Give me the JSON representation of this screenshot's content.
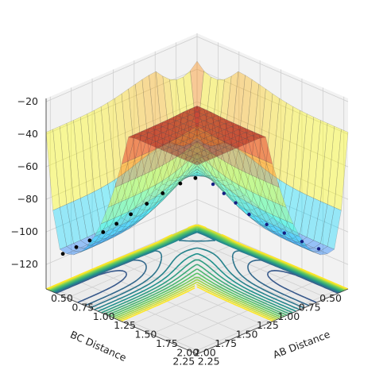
{
  "chart_data": {
    "type": "surface3d",
    "title": "",
    "xlabel": "AB Distance",
    "ylabel": "BC Distance",
    "zlabel": "",
    "xlim": [
      0.5,
      2.3
    ],
    "ylim": [
      0.5,
      2.3
    ],
    "zlim": [
      -135,
      -18
    ],
    "x_ticks": [
      "0.50",
      "0.75",
      "1.00",
      "1.25",
      "1.50",
      "1.75",
      "2.00",
      "2.25"
    ],
    "y_ticks": [
      "0.50",
      "0.75",
      "1.00",
      "1.25",
      "1.50",
      "1.75",
      "2.00",
      "2.25"
    ],
    "z_ticks": [
      "−20",
      "−40",
      "−60",
      "−80",
      "−100",
      "−120"
    ],
    "x_tick_values": [
      0.5,
      0.75,
      1.0,
      1.25,
      1.5,
      1.75,
      2.0,
      2.25
    ],
    "y_tick_values": [
      0.5,
      0.75,
      1.0,
      1.25,
      1.5,
      1.75,
      2.0,
      2.25
    ],
    "z_tick_values": [
      -20,
      -40,
      -60,
      -80,
      -100,
      -120
    ],
    "surface_colormap": "jet (semi-transparent)",
    "contour_colormap": "viridis",
    "contour_offset_z": -135,
    "contour_levels": [
      -130,
      -125,
      -120,
      -115,
      -110,
      -105,
      -100,
      -95,
      -90,
      -85,
      -80,
      -75,
      -70,
      -65,
      -60,
      -55,
      -50,
      -45,
      -40
    ],
    "grid": true,
    "colors": {
      "pane": "#f2f2f2",
      "grid": "#cfcfcf",
      "trajectory_approach": "#151f82",
      "trajectory_product": "#000000"
    },
    "trajectory": {
      "name": "",
      "approach_points": [
        {
          "ab": 2.2,
          "bc": 0.75,
          "z": -107
        },
        {
          "ab": 2.0,
          "bc": 0.75,
          "z": -107
        },
        {
          "ab": 1.8,
          "bc": 0.76,
          "z": -106
        },
        {
          "ab": 1.6,
          "bc": 0.77,
          "z": -105
        },
        {
          "ab": 1.4,
          "bc": 0.78,
          "z": -103
        },
        {
          "ab": 1.25,
          "bc": 0.79,
          "z": -99
        },
        {
          "ab": 1.14,
          "bc": 0.82,
          "z": -95
        },
        {
          "ab": 1.06,
          "bc": 0.87,
          "z": -90
        }
      ],
      "product_points": [
        {
          "ab": 0.96,
          "bc": 0.98,
          "z": -86
        },
        {
          "ab": 0.9,
          "bc": 1.1,
          "z": -88
        },
        {
          "ab": 0.84,
          "bc": 1.25,
          "z": -92
        },
        {
          "ab": 0.8,
          "bc": 1.4,
          "z": -96
        },
        {
          "ab": 0.76,
          "bc": 1.55,
          "z": -100
        },
        {
          "ab": 0.74,
          "bc": 1.7,
          "z": -103
        },
        {
          "ab": 0.73,
          "bc": 1.85,
          "z": -105
        },
        {
          "ab": 0.72,
          "bc": 2.0,
          "z": -107
        },
        {
          "ab": 0.71,
          "bc": 2.15,
          "z": -108
        },
        {
          "ab": 0.7,
          "bc": 2.3,
          "z": -109
        }
      ]
    }
  }
}
